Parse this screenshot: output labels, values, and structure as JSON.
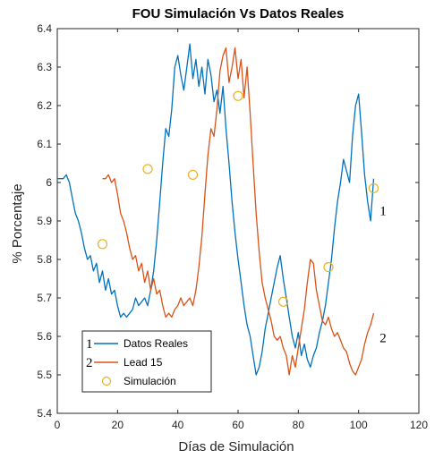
{
  "chart_data": {
    "type": "line",
    "title": "FOU Simulación Vs Datos Reales",
    "xlabel": "Días de Simulación",
    "ylabel": "% Porcentaje",
    "xlim": [
      0,
      120
    ],
    "ylim": [
      5.4,
      6.4
    ],
    "xticks": [
      "0",
      "20",
      "40",
      "60",
      "80",
      "100",
      "120"
    ],
    "yticks": [
      "5.4",
      "5.5",
      "5.6",
      "5.7",
      "5.8",
      "5.9",
      "6",
      "6.1",
      "6.2",
      "6.3",
      "6.4"
    ],
    "grid": false,
    "legend_position": "bottom-left",
    "series": [
      {
        "name": "Datos Reales",
        "legend_marker": "1",
        "color": "#0072BD",
        "style": "line",
        "x": [
          0,
          1,
          2,
          3,
          4,
          5,
          6,
          7,
          8,
          9,
          10,
          11,
          12,
          13,
          14,
          15,
          16,
          17,
          18,
          19,
          20,
          21,
          22,
          23,
          24,
          25,
          26,
          27,
          28,
          29,
          30,
          31,
          32,
          33,
          34,
          35,
          36,
          37,
          38,
          39,
          40,
          41,
          42,
          43,
          44,
          45,
          46,
          47,
          48,
          49,
          50,
          51,
          52,
          53,
          54,
          55,
          56,
          57,
          58,
          59,
          60,
          61,
          62,
          63,
          64,
          65,
          66,
          67,
          68,
          69,
          70,
          71,
          72,
          73,
          74,
          75,
          76,
          77,
          78,
          79,
          80,
          81,
          82,
          83,
          84,
          85,
          86,
          87,
          88,
          89,
          90,
          91,
          92,
          93,
          94,
          95,
          96,
          97,
          98,
          99,
          100,
          101,
          102,
          103,
          104,
          105
        ],
        "values": [
          6.01,
          6.01,
          6.01,
          6.02,
          6.0,
          5.96,
          5.92,
          5.9,
          5.87,
          5.83,
          5.8,
          5.81,
          5.77,
          5.79,
          5.74,
          5.77,
          5.72,
          5.75,
          5.71,
          5.72,
          5.68,
          5.65,
          5.66,
          5.65,
          5.66,
          5.67,
          5.7,
          5.68,
          5.69,
          5.7,
          5.68,
          5.72,
          5.77,
          5.85,
          5.95,
          6.05,
          6.14,
          6.12,
          6.19,
          6.3,
          6.33,
          6.28,
          6.24,
          6.3,
          6.36,
          6.27,
          6.32,
          6.25,
          6.3,
          6.23,
          6.32,
          6.28,
          6.21,
          6.24,
          6.18,
          6.25,
          6.14,
          6.05,
          5.95,
          5.87,
          5.8,
          5.74,
          5.68,
          5.63,
          5.6,
          5.55,
          5.5,
          5.52,
          5.56,
          5.62,
          5.66,
          5.7,
          5.74,
          5.78,
          5.81,
          5.75,
          5.7,
          5.65,
          5.6,
          5.57,
          5.61,
          5.55,
          5.58,
          5.54,
          5.52,
          5.55,
          5.57,
          5.61,
          5.64,
          5.68,
          5.74,
          5.8,
          5.88,
          5.95,
          6.0,
          6.06,
          6.03,
          6.0,
          6.12,
          6.2,
          6.23,
          6.13,
          6.02,
          5.95,
          5.9,
          6.01
        ]
      },
      {
        "name": "Lead 15",
        "legend_marker": "2",
        "color": "#D95319",
        "style": "line",
        "x": [
          15,
          16,
          17,
          18,
          19,
          20,
          21,
          22,
          23,
          24,
          25,
          26,
          27,
          28,
          29,
          30,
          31,
          32,
          33,
          34,
          35,
          36,
          37,
          38,
          39,
          40,
          41,
          42,
          43,
          44,
          45,
          46,
          47,
          48,
          49,
          50,
          51,
          52,
          53,
          54,
          55,
          56,
          57,
          58,
          59,
          60,
          61,
          62,
          63,
          64,
          65,
          66,
          67,
          68,
          69,
          70,
          71,
          72,
          73,
          74,
          75,
          76,
          77,
          78,
          79,
          80,
          81,
          82,
          83,
          84,
          85,
          86,
          87,
          88,
          89,
          90,
          91,
          92,
          93,
          94,
          95,
          96,
          97,
          98,
          99,
          100,
          101,
          102,
          103,
          104,
          105
        ],
        "values": [
          6.01,
          6.01,
          6.02,
          6.0,
          6.01,
          5.97,
          5.92,
          5.9,
          5.87,
          5.83,
          5.8,
          5.81,
          5.77,
          5.79,
          5.74,
          5.77,
          5.72,
          5.75,
          5.71,
          5.72,
          5.68,
          5.65,
          5.66,
          5.65,
          5.67,
          5.68,
          5.7,
          5.68,
          5.69,
          5.7,
          5.68,
          5.72,
          5.78,
          5.86,
          5.97,
          6.07,
          6.14,
          6.12,
          6.19,
          6.29,
          6.33,
          6.35,
          6.26,
          6.3,
          6.35,
          6.27,
          6.32,
          6.22,
          6.3,
          6.18,
          6.05,
          5.92,
          5.82,
          5.74,
          5.7,
          5.67,
          5.64,
          5.6,
          5.59,
          5.6,
          5.57,
          5.55,
          5.5,
          5.55,
          5.52,
          5.57,
          5.62,
          5.67,
          5.74,
          5.8,
          5.79,
          5.72,
          5.68,
          5.64,
          5.63,
          5.65,
          5.62,
          5.6,
          5.61,
          5.59,
          5.57,
          5.56,
          5.53,
          5.51,
          5.5,
          5.52,
          5.54,
          5.58,
          5.61,
          5.63,
          5.66
        ]
      },
      {
        "name": "Simulación",
        "color": "#EDB120",
        "style": "markers",
        "x": [
          15,
          30,
          45,
          60,
          75,
          90,
          105
        ],
        "values": [
          5.84,
          6.035,
          6.02,
          6.225,
          5.69,
          5.78,
          5.985
        ]
      }
    ],
    "annotations": [
      {
        "text": "1",
        "x": 107,
        "y": 5.915
      },
      {
        "text": "2",
        "x": 107,
        "y": 5.585
      }
    ]
  }
}
